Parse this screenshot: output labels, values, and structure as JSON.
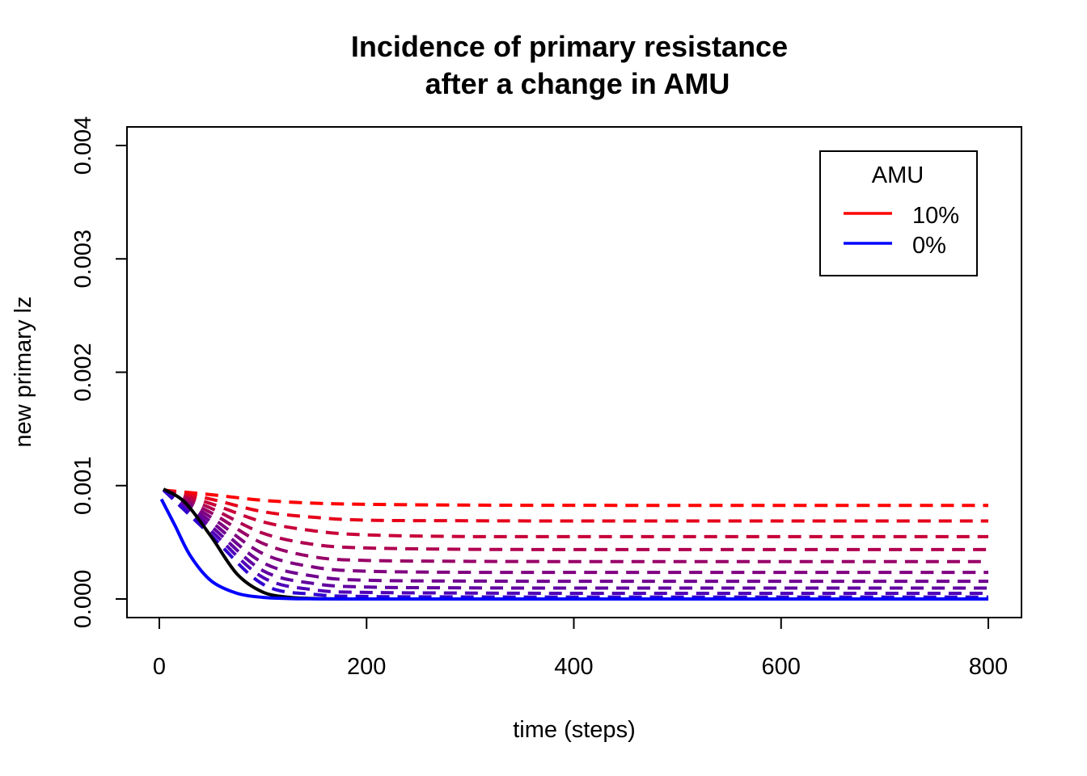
{
  "chart_data": {
    "type": "line",
    "title_line1": "Incidence of primary resistance",
    "title_line2": "after a change in AMU",
    "xlabel": "time (steps)",
    "ylabel": "new primary lz",
    "xlim": [
      0,
      800
    ],
    "ylim": [
      0,
      0.004
    ],
    "x_ticks": [
      "0",
      "200",
      "400",
      "600",
      "800"
    ],
    "x_tick_values": [
      0,
      200,
      400,
      600,
      800
    ],
    "y_ticks": [
      "0.000",
      "0.001",
      "0.002",
      "0.003",
      "0.004"
    ],
    "y_tick_values": [
      0,
      0.001,
      0.002,
      0.003,
      0.004
    ],
    "grid": false,
    "legend": {
      "title": "AMU",
      "placement": "top-right",
      "entries": [
        {
          "label": "10%",
          "color": "#ff0000"
        },
        {
          "label": "0%",
          "color": "#0000ff"
        }
      ]
    },
    "series": [
      {
        "name": "10%",
        "color": "#ff0000",
        "dash": true,
        "x": [
          4,
          50,
          100,
          150,
          200,
          300,
          400,
          600,
          800
        ],
        "y": [
          0.00096,
          0.00092,
          0.00087,
          0.000845,
          0.000835,
          0.000828,
          0.000826,
          0.000825,
          0.000825
        ]
      },
      {
        "color": "#e6001a",
        "dash": true,
        "x": [
          4,
          50,
          100,
          150,
          200,
          300,
          400,
          600,
          800
        ],
        "y": [
          0.00096,
          0.00088,
          0.00077,
          0.00072,
          0.000695,
          0.00069,
          0.000688,
          0.000688,
          0.000688
        ]
      },
      {
        "color": "#c80038",
        "dash": true,
        "x": [
          4,
          50,
          100,
          150,
          200,
          300,
          400,
          600,
          800
        ],
        "y": [
          0.00096,
          0.00084,
          0.00068,
          0.0006,
          0.000565,
          0.00055,
          0.00055,
          0.00055,
          0.00055
        ]
      },
      {
        "color": "#b00050",
        "dash": true,
        "x": [
          4,
          50,
          100,
          150,
          200,
          300,
          400,
          600,
          800
        ],
        "y": [
          0.00096,
          0.0008,
          0.00058,
          0.00048,
          0.00045,
          0.000438,
          0.000436,
          0.000436,
          0.000436
        ]
      },
      {
        "color": "#980068",
        "dash": true,
        "x": [
          4,
          50,
          100,
          150,
          200,
          300,
          400,
          600,
          800
        ],
        "y": [
          0.00096,
          0.00076,
          0.00049,
          0.00037,
          0.00034,
          0.000332,
          0.00033,
          0.00033,
          0.00033
        ]
      },
      {
        "color": "#800080",
        "dash": true,
        "x": [
          4,
          50,
          100,
          150,
          200,
          300,
          400,
          600,
          800
        ],
        "y": [
          0.00096,
          0.00072,
          0.0004,
          0.00028,
          0.000245,
          0.000235,
          0.000234,
          0.000234,
          0.000234
        ]
      },
      {
        "color": "#700090",
        "dash": true,
        "x": [
          4,
          50,
          100,
          150,
          200,
          300,
          400,
          600,
          800
        ],
        "y": [
          0.00096,
          0.00068,
          0.00032,
          0.0002,
          0.000165,
          0.000158,
          0.000156,
          0.000156,
          0.000156
        ]
      },
      {
        "color": "#6000a0",
        "dash": true,
        "x": [
          4,
          50,
          100,
          150,
          200,
          300,
          400,
          600,
          800
        ],
        "y": [
          0.00096,
          0.00064,
          0.00025,
          0.000135,
          0.000105,
          9.8e-05,
          9.6e-05,
          9.6e-05,
          9.6e-05
        ]
      },
      {
        "color": "#5000b8",
        "dash": true,
        "x": [
          4,
          50,
          100,
          150,
          200,
          300,
          400,
          600,
          800
        ],
        "y": [
          0.00096,
          0.0006,
          0.00019,
          8e-05,
          5.8e-05,
          5.2e-05,
          5e-05,
          5e-05,
          5e-05
        ]
      },
      {
        "color": "#3000d0",
        "dash": true,
        "x": [
          4,
          50,
          100,
          150,
          200,
          300,
          400,
          600,
          800
        ],
        "y": [
          0.00096,
          0.00056,
          0.00013,
          4e-05,
          2.2e-05,
          1.8e-05,
          1.7e-05,
          1.7e-05,
          1.7e-05
        ]
      },
      {
        "color": "#000000",
        "dash": false,
        "x": [
          4,
          25,
          50,
          75,
          100,
          125,
          150,
          200,
          300,
          400,
          600,
          800
        ],
        "y": [
          0.00097,
          0.00085,
          0.00055,
          0.00022,
          6e-05,
          1.5e-05,
          4e-06,
          0,
          0,
          0,
          0,
          0
        ]
      },
      {
        "name": "0%",
        "color": "#0000ff",
        "dash": false,
        "x": [
          2,
          15,
          30,
          50,
          75,
          100,
          125,
          150,
          200,
          300,
          400,
          600,
          800
        ],
        "y": [
          0.00088,
          0.00065,
          0.00038,
          0.00016,
          5e-05,
          1.4e-05,
          4e-06,
          1e-06,
          0,
          0,
          0,
          0,
          0
        ]
      }
    ]
  }
}
